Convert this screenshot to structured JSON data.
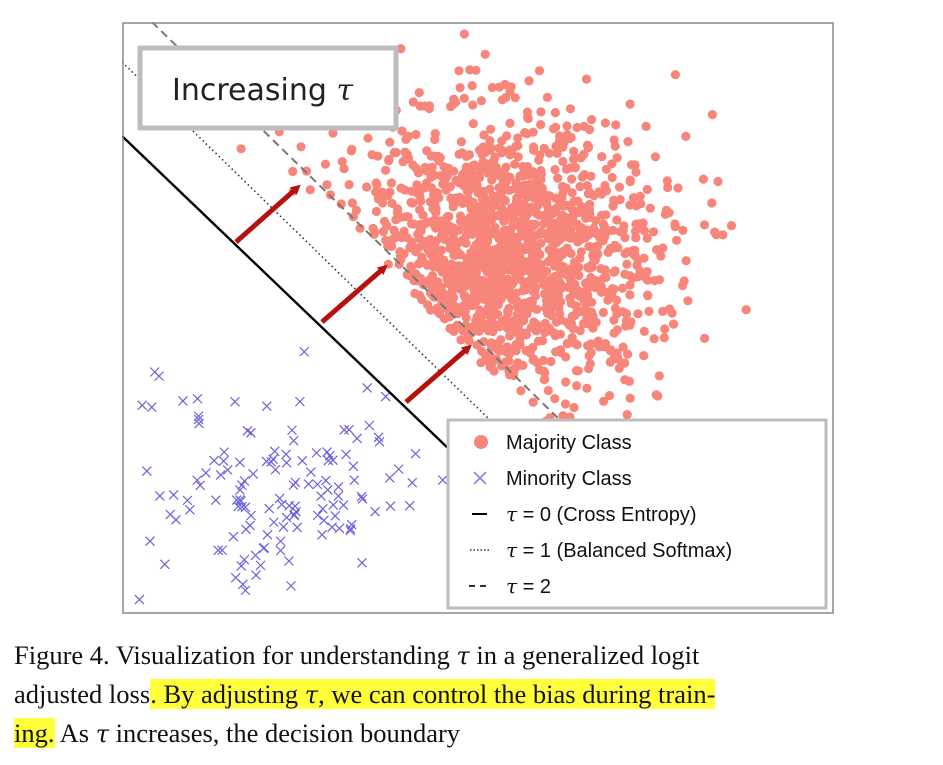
{
  "figure": {
    "overlay_title_prefix": "Increasing",
    "overlay_title_symbol": "τ",
    "legend": [
      {
        "marker": "dot",
        "label": "Majority Class"
      },
      {
        "marker": "x",
        "label": "Minority Class"
      },
      {
        "marker": "solid",
        "symbol": "τ",
        "rest": " = 0 (Cross Entropy)"
      },
      {
        "marker": "dotted",
        "symbol": "τ",
        "rest": " = 1 (Balanced Softmax)"
      },
      {
        "marker": "dashed",
        "symbol": "τ",
        "rest": " = 2"
      }
    ],
    "colors": {
      "majority": "#f7857a",
      "minority": "#6b62e0",
      "arrow": "#b5120d",
      "frame": "#bdbdbd"
    }
  },
  "chart_data": {
    "type": "scatter",
    "series": [
      {
        "name": "Majority Class",
        "marker": "dot"
      },
      {
        "name": "Minority Class",
        "marker": "x"
      }
    ],
    "boundaries": [
      {
        "symbol": "τ",
        "value": "0",
        "label": "(Cross Entropy)",
        "style": "solid"
      },
      {
        "symbol": "τ",
        "value": "1",
        "label": "(Balanced Softmax)",
        "style": "dotted"
      },
      {
        "symbol": "τ",
        "value": "2",
        "label": "",
        "style": "dashed"
      }
    ],
    "grid": false,
    "legend_position": "bottom-right"
  },
  "caption": {
    "line1_a": "Figure 4. Visualization for understanding ",
    "line1_sym": "τ",
    "line1_b": " in a generalized logit",
    "line2_a": "adjusted loss",
    "line2_hl_a": ". By adjusting ",
    "line2_hl_sym": "τ",
    "line2_hl_b": ", we can control the bias during train-",
    "line3_hl": "ing.",
    "line3_b": " As ",
    "line3_sym": "τ",
    "line3_c": " increases, the decision boundary"
  }
}
